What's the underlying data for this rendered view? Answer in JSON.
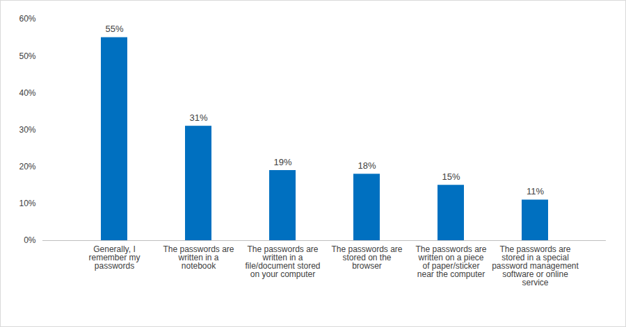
{
  "chart_data": {
    "type": "bar",
    "categories": [
      "Generally, I remember my passwords",
      "The passwords are written in a notebook",
      "The passwords are written in a file/document stored on your computer",
      "The passwords are stored on the browser",
      "The passwords are written on a piece of paper/sticker near the computer",
      "The passwords are stored in a special password management software or online service"
    ],
    "values": [
      55,
      31,
      19,
      18,
      15,
      11
    ],
    "value_labels": [
      "55%",
      "31%",
      "19%",
      "18%",
      "15%",
      "11%"
    ],
    "color": "#0070c0",
    "ylim": [
      0,
      60
    ],
    "yticks": [
      {
        "value": 0,
        "label": "0%"
      },
      {
        "value": 10,
        "label": "10%"
      },
      {
        "value": 20,
        "label": "20%"
      },
      {
        "value": 30,
        "label": "30%"
      },
      {
        "value": 40,
        "label": "40%"
      },
      {
        "value": 50,
        "label": "50%"
      },
      {
        "value": 60,
        "label": "60%"
      }
    ],
    "grid": false,
    "data_labels": true
  }
}
